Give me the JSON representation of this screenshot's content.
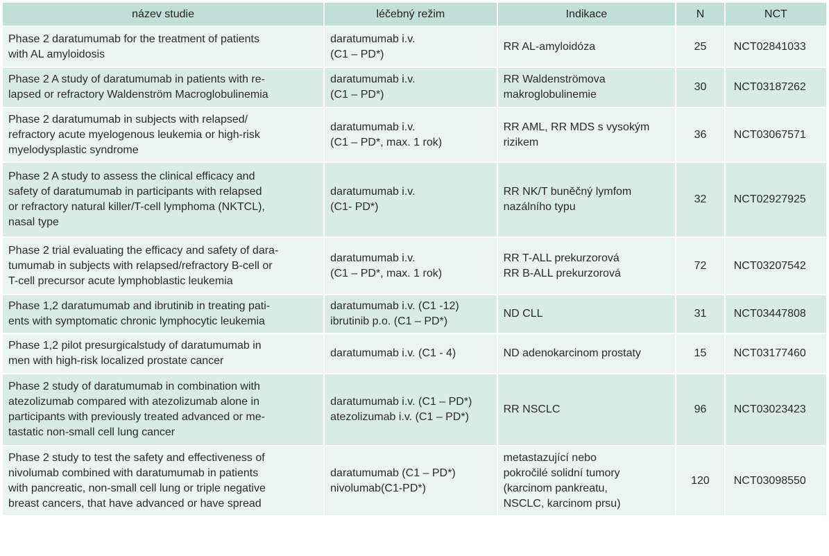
{
  "headers": [
    "název studie",
    "léčebný režim",
    "Indikace",
    "N",
    "NCT"
  ],
  "rows": [
    {
      "study": "Phase 2 daratumumab for the treatment  of patients\nwith AL amyloidosis",
      "regimen": "daratumumab i.v.\n(C1 – PD*)",
      "indication": "RR AL-amyloidóza",
      "n": "25",
      "nct": "NCT02841033"
    },
    {
      "study": "Phase 2 A study of daratumumab in patients with re-\nlapsed or refractory Waldenström Macroglobulinemia",
      "regimen": "daratumumab i.v.\n(C1 – PD*)",
      "indication": "RR Waldenströmova\nmakroglobulinemie",
      "n": "30",
      "nct": "NCT03187262"
    },
    {
      "study": "Phase 2 daratumumab in subjects with relapsed/\nrefractory acute myelogenous leukemia or high-risk\nmyelodysplastic syndrome",
      "regimen": "daratumumab i.v.\n(C1 – PD*, max. 1 rok)",
      "indication": "RR AML, RR MDS s vysokým\nrizikem",
      "n": "36",
      "nct": "NCT03067571"
    },
    {
      "study": "Phase 2 A study to assess the clinical efficacy and\nsafety of daratumumab in participants with relapsed\nor refractory natural killer/T-cell lymphoma (NKTCL),\nnasal type",
      "regimen": "daratumumab i.v.\n(C1- PD*)",
      "indication": "RR NK/T buněčný lymfom\nnazálního typu",
      "n": "32",
      "nct": "NCT02927925"
    },
    {
      "study": "Phase 2 trial evaluating the efficacy and safety of dara-\ntumumab in subjects with relapsed/refractory B-cell or\nT-cell precursor acute lymphoblastic leukemia",
      "regimen": "daratumumab i.v.\n(C1 – PD*, max. 1 rok)",
      "indication": "RR T-ALL prekurzorová\nRR B-ALL prekurzorová",
      "n": "72",
      "nct": "NCT03207542"
    },
    {
      "study": "Phase 1,2 daratumumab and ibrutinib in treating pati-\nents with symptomatic chronic lymphocytic leukemia",
      "regimen": "daratumumab i.v. (C1 -12)\nibrutinib p.o. (C1 – PD*)",
      "indication": "ND CLL",
      "n": "31",
      "nct": "NCT03447808"
    },
    {
      "study": "Phase 1,2 pilot presurgicalstudy of daratumumab in\nmen with high-risk localized prostate cancer",
      "regimen": "daratumumab i.v. (C1 - 4)",
      "indication": "ND adenokarcinom prostaty",
      "n": "15",
      "nct": "NCT03177460"
    },
    {
      "study": "Phase 2 study of daratumumab in combination with\natezolizumab compared with atezolizumab alone in\nparticipants with previously treated advanced or me-\ntastatic non-small cell lung cancer",
      "regimen": "daratumumab i.v. (C1 – PD*)\natezolizumab i.v. (C1 – PD*)",
      "indication": "RR NSCLC",
      "n": "96",
      "nct": "NCT03023423"
    },
    {
      "study": "Phase 2 study to test the safety and effectiveness of\nnivolumab combined with daratumumab in patients\nwith pancreatic, non-small cell lung or triple negative\nbreast cancers, that have advanced or have spread",
      "regimen": "daratumumab (C1 – PD*)\nnivolumab(C1-PD*)",
      "indication": "metastazující nebo\npokročilé solidní tumory\n(karcinom pankreatu,\nNSCLC, karcinom prsu)",
      "n": "120",
      "nct": "NCT03098550"
    }
  ]
}
